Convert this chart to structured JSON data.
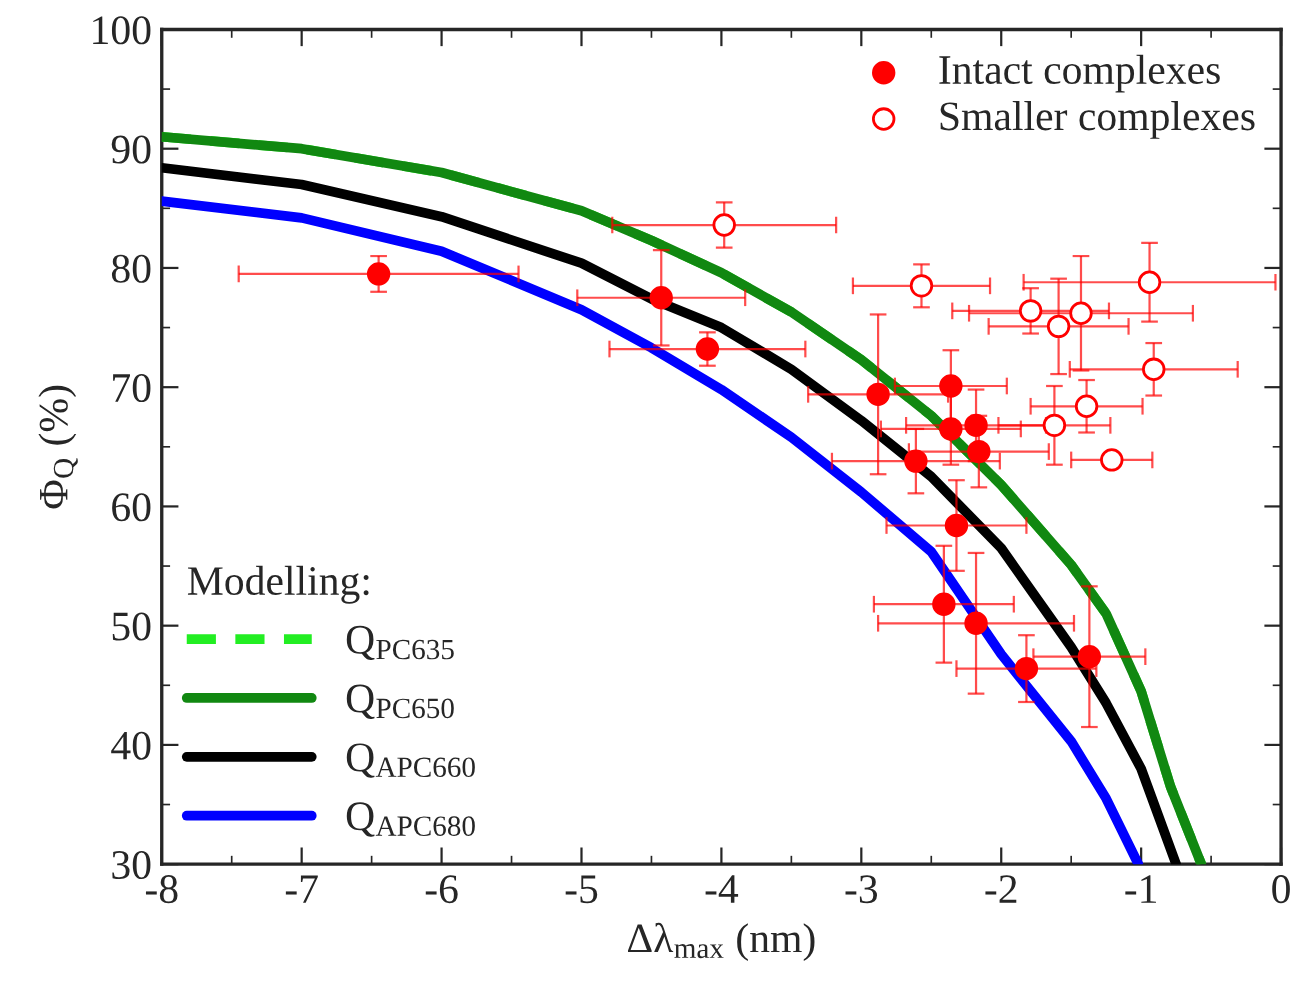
{
  "chart_data": {
    "type": "scatter",
    "xlabel": "Δλ$_{max}$ (nm)",
    "ylabel": "Φ$_{Q}$ (%)",
    "legend_title": "Modelling:",
    "legend": "top right",
    "xlim": [
      -8,
      0
    ],
    "ylim": [
      30,
      100
    ],
    "xticks": [
      -8,
      -7,
      -6,
      -5,
      -4,
      -3,
      -2,
      -1,
      0
    ],
    "yticks": [
      30,
      40,
      50,
      60,
      70,
      80,
      90,
      100
    ],
    "grid": false,
    "series": [
      {
        "name": "Intact complexes",
        "marker": "circle",
        "color": "#ff0000",
        "colors": [
          "#ff0000",
          "#ff0000",
          "#ff0000",
          "#ff0000",
          "#ff0000",
          "#ff0000",
          "#ff0000",
          "#ff0000",
          "#ff0000",
          "#ff0000",
          "#ff0000",
          "#ff0000",
          "#ff0000",
          "#ff0000"
        ],
        "x": [
          -6.45,
          -4.43,
          -4.1,
          -2.88,
          -2.36,
          -2.36,
          -2.18,
          -2.16,
          -2.61,
          -2.32,
          -2.41,
          -2.18,
          -1.82,
          -1.37
        ],
        "values": [
          79.5,
          77.5,
          73.2,
          69.4,
          70.1,
          66.5,
          66.8,
          64.6,
          63.8,
          58.4,
          51.8,
          50.2,
          46.4,
          47.4
        ],
        "xerrors": [
          1.0,
          0.6,
          0.7,
          0.5,
          0.4,
          0.5,
          0.5,
          0.5,
          0.6,
          0.5,
          0.5,
          0.7,
          0.5,
          0.4
        ],
        "errors": [
          1.5,
          4,
          1.4,
          6.7,
          3,
          3,
          3,
          3,
          2.7,
          3.8,
          4.9,
          5.9,
          2.8,
          5.9
        ]
      },
      {
        "name": "Smaller complexes",
        "marker": "circle",
        "color": "#ff0000",
        "colors": [
          "#ffffff",
          "#ffffff",
          "#ffffff",
          "#ffffff",
          "#ffffff",
          "#ffffff",
          "#ffffff",
          "#ffffff",
          "#ffffff",
          "#ffffff"
        ],
        "x": [
          -3.98,
          -2.57,
          -1.79,
          -1.59,
          -1.43,
          -0.94,
          -0.91,
          -1.39,
          -1.62,
          -1.21
        ],
        "values": [
          83.6,
          78.5,
          76.4,
          75.1,
          76.2,
          78.8,
          71.5,
          68.4,
          66.8,
          63.9
        ],
        "xerrors": [
          0.8,
          0.49,
          0.56,
          0.5,
          0.8,
          0.9,
          0.6,
          0.4,
          0.4,
          0.29
        ],
        "errors": [
          1.9,
          1.8,
          1.9,
          4,
          4.8,
          3.3,
          2.2,
          2.2,
          3.3,
          0.5
        ]
      },
      {
        "name": "Q$_{PC635}$",
        "type": "line",
        "line_style": "dashed",
        "marker": "none",
        "color": "#22ee22",
        "x": [
          -8,
          -7,
          -6,
          -5,
          -4.5,
          -4,
          -3.5,
          -3,
          -2.5,
          -2,
          -1.5,
          -1.25,
          -1,
          -0.79,
          -0.57
        ],
        "values": [
          91.0,
          90.0,
          88.0,
          84.8,
          82.3,
          79.6,
          76.3,
          72.3,
          67.6,
          61.8,
          55.1,
          51,
          44.5,
          36.5,
          30
        ]
      },
      {
        "name": "Q$_{PC650}$",
        "type": "line",
        "line_style": "solid",
        "marker": "none",
        "color": "#118811",
        "x": [
          -8,
          -7,
          -6,
          -5,
          -4.5,
          -4,
          -3.5,
          -3,
          -2.5,
          -2,
          -1.5,
          -1.25,
          -1,
          -0.79,
          -0.57
        ],
        "values": [
          91.0,
          90.0,
          88.0,
          84.8,
          82.3,
          79.6,
          76.3,
          72.3,
          67.6,
          61.8,
          55.1,
          51,
          44.5,
          36.5,
          30
        ]
      },
      {
        "name": "Q$_{APC660}$",
        "type": "line",
        "line_style": "solid",
        "marker": "none",
        "color": "#000000",
        "x": [
          -8,
          -7,
          -6,
          -5,
          -4.5,
          -4,
          -3.5,
          -3,
          -2.5,
          -2,
          -1.5,
          -1.25,
          -1,
          -0.75
        ],
        "values": [
          88.4,
          87.0,
          84.3,
          80.4,
          77.4,
          75.0,
          71.5,
          67.2,
          62.5,
          56.5,
          48.2,
          43.5,
          38,
          30
        ]
      },
      {
        "name": "Q$_{APC680}$",
        "type": "line",
        "line_style": "solid",
        "marker": "none",
        "color": "#0000ff",
        "x": [
          -8,
          -7,
          -6,
          -5,
          -4.5,
          -4,
          -3.5,
          -3,
          -2.5,
          -2,
          -1.5,
          -1.25,
          -1.02
        ],
        "values": [
          85.6,
          84.2,
          81.4,
          76.5,
          73.3,
          69.8,
          65.8,
          61.2,
          56.2,
          47.6,
          40.3,
          35.5,
          30
        ]
      }
    ]
  }
}
